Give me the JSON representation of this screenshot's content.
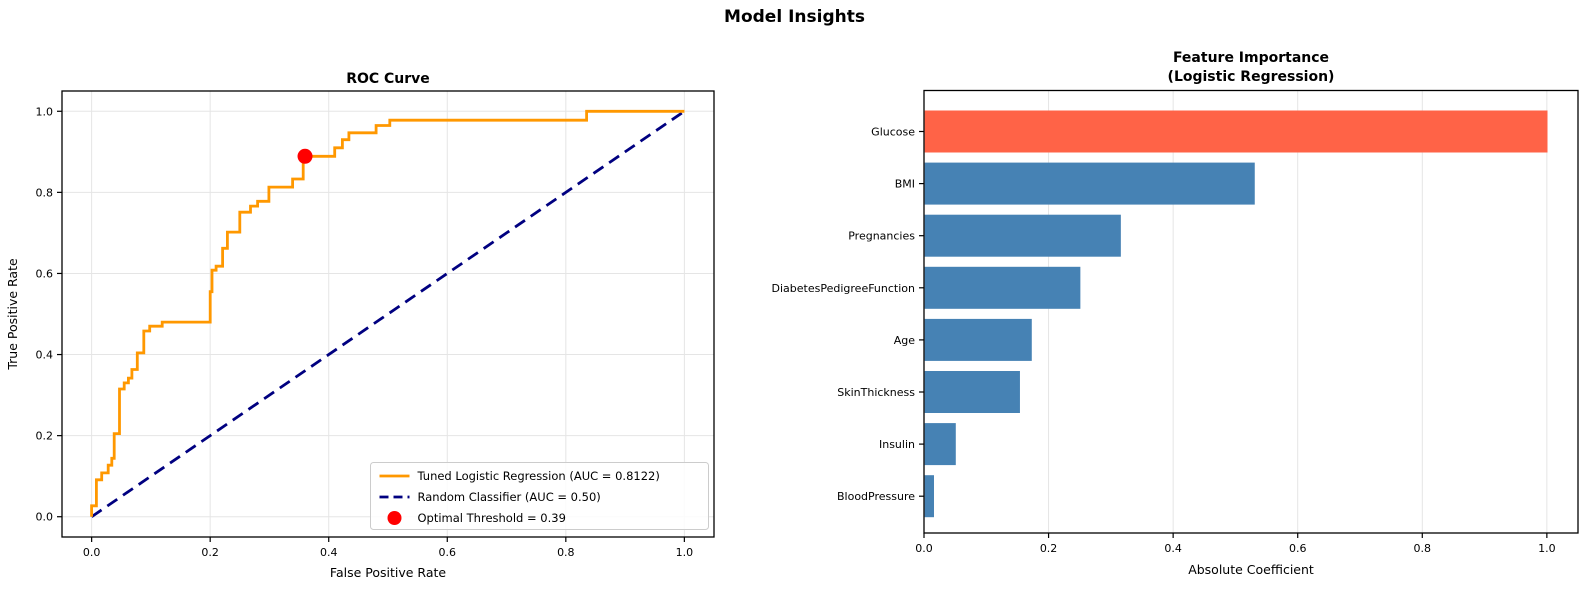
{
  "figure_title": "Model Insights",
  "colors": {
    "roc_line": "#FF9800",
    "random_line": "#000080",
    "threshold_marker": "#FF0000",
    "bar_highlight": "#FF6347",
    "bar_default": "#4682B4",
    "grid": "#E5E5E5",
    "spine": "#000000",
    "legend_border": "#CCCCCC"
  },
  "chart_data": [
    {
      "id": "roc-curve",
      "type": "line",
      "title": "ROC Curve",
      "xlabel": "False Positive Rate",
      "ylabel": "True Positive Rate",
      "xlim": [
        -0.05,
        1.05
      ],
      "ylim": [
        -0.05,
        1.05
      ],
      "xticks": [
        "0.0",
        "0.2",
        "0.4",
        "0.6",
        "0.8",
        "1.0"
      ],
      "yticks": [
        "0.0",
        "0.2",
        "0.4",
        "0.6",
        "0.8",
        "1.0"
      ],
      "grid": true,
      "legend_position": "lower right",
      "series": [
        {
          "name": "Tuned Logistic Regression (AUC = 0.8122)",
          "kind": "step-line",
          "color": "#FF9800",
          "points": [
            [
              0.0,
              0.0
            ],
            [
              0.0,
              0.027
            ],
            [
              0.008,
              0.027
            ],
            [
              0.008,
              0.091
            ],
            [
              0.017,
              0.091
            ],
            [
              0.017,
              0.108
            ],
            [
              0.028,
              0.108
            ],
            [
              0.028,
              0.127
            ],
            [
              0.034,
              0.127
            ],
            [
              0.034,
              0.144
            ],
            [
              0.038,
              0.144
            ],
            [
              0.038,
              0.205
            ],
            [
              0.047,
              0.205
            ],
            [
              0.047,
              0.315
            ],
            [
              0.055,
              0.315
            ],
            [
              0.055,
              0.33
            ],
            [
              0.062,
              0.33
            ],
            [
              0.062,
              0.342
            ],
            [
              0.068,
              0.342
            ],
            [
              0.068,
              0.363
            ],
            [
              0.077,
              0.363
            ],
            [
              0.077,
              0.404
            ],
            [
              0.088,
              0.404
            ],
            [
              0.088,
              0.458
            ],
            [
              0.098,
              0.458
            ],
            [
              0.098,
              0.47
            ],
            [
              0.119,
              0.47
            ],
            [
              0.119,
              0.48
            ],
            [
              0.2,
              0.48
            ],
            [
              0.2,
              0.555
            ],
            [
              0.203,
              0.555
            ],
            [
              0.203,
              0.608
            ],
            [
              0.21,
              0.608
            ],
            [
              0.21,
              0.618
            ],
            [
              0.221,
              0.618
            ],
            [
              0.221,
              0.662
            ],
            [
              0.229,
              0.662
            ],
            [
              0.229,
              0.702
            ],
            [
              0.25,
              0.702
            ],
            [
              0.25,
              0.751
            ],
            [
              0.268,
              0.751
            ],
            [
              0.268,
              0.766
            ],
            [
              0.28,
              0.766
            ],
            [
              0.28,
              0.778
            ],
            [
              0.299,
              0.778
            ],
            [
              0.299,
              0.813
            ],
            [
              0.339,
              0.813
            ],
            [
              0.339,
              0.833
            ],
            [
              0.357,
              0.833
            ],
            [
              0.357,
              0.889
            ],
            [
              0.41,
              0.889
            ],
            [
              0.41,
              0.91
            ],
            [
              0.423,
              0.91
            ],
            [
              0.423,
              0.93
            ],
            [
              0.434,
              0.93
            ],
            [
              0.434,
              0.947
            ],
            [
              0.48,
              0.947
            ],
            [
              0.48,
              0.965
            ],
            [
              0.503,
              0.965
            ],
            [
              0.503,
              0.978
            ],
            [
              0.835,
              0.978
            ],
            [
              0.835,
              1.0
            ],
            [
              1.0,
              1.0
            ]
          ]
        },
        {
          "name": "Random Classifier (AUC = 0.50)",
          "kind": "dashed-line",
          "color": "#000080",
          "points": [
            [
              0.0,
              0.0
            ],
            [
              1.0,
              1.0
            ]
          ]
        },
        {
          "name": "Optimal Threshold = 0.39",
          "kind": "marker",
          "color": "#FF0000",
          "points": [
            [
              0.36,
              0.889
            ]
          ]
        }
      ]
    },
    {
      "id": "feature-importance",
      "type": "bar",
      "orientation": "horizontal",
      "title_lines": [
        "Feature Importance",
        "(Logistic Regression)"
      ],
      "xlabel": "Absolute Coefficient",
      "xlim": [
        0,
        1.05
      ],
      "xticks": [
        "0.0",
        "0.2",
        "0.4",
        "0.6",
        "0.8",
        "1.0"
      ],
      "grid": "x",
      "categories": [
        "Glucose",
        "BMI",
        "Pregnancies",
        "DiabetesPedigreeFunction",
        "Age",
        "SkinThickness",
        "Insulin",
        "BloodPressure"
      ],
      "values": [
        1.0,
        0.53,
        0.315,
        0.25,
        0.172,
        0.153,
        0.05,
        0.015
      ],
      "bar_colors": [
        "#FF6347",
        "#4682B4",
        "#4682B4",
        "#4682B4",
        "#4682B4",
        "#4682B4",
        "#4682B4",
        "#4682B4"
      ]
    }
  ]
}
